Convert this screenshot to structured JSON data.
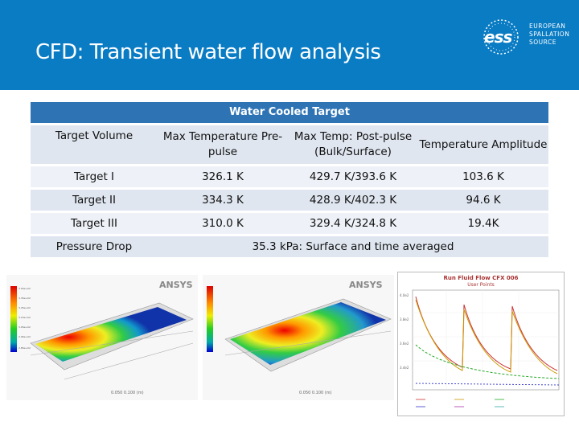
{
  "slide": {
    "title": "CFD: Transient water flow analysis",
    "logo_wordmark": "ess",
    "logo_lines": [
      "EUROPEAN",
      "SPALLATION",
      "SOURCE"
    ]
  },
  "table": {
    "caption": "Water Cooled Target",
    "headers": [
      "Target Volume",
      "Max Temperature Pre-pulse",
      "Max Temp: Post-pulse (Bulk/Surface)",
      "Temperature Amplitude"
    ],
    "rows": [
      [
        "Target I",
        "326.1 K",
        "429.7 K/393.6 K",
        "103.6 K"
      ],
      [
        "Target II",
        "334.3 K",
        "428.9 K/402.3 K",
        "94.6 K"
      ],
      [
        "Target III",
        "310.0 K",
        "329.4 K/324.8 K",
        "19.4K"
      ]
    ],
    "pressure_label": "Pressure Drop",
    "pressure_value": "35.3 kPa: Surface and time averaged"
  },
  "images": {
    "sim_brand": "ANSYS",
    "plot_title": "Run Fluid Flow CFX 006",
    "plot_subtitle": "User Points"
  },
  "colors": {
    "header_blue": "#0a7cc4",
    "table_head": "#2e74b5",
    "row_dark": "#dfe6f0",
    "row_light": "#eef2f8"
  }
}
